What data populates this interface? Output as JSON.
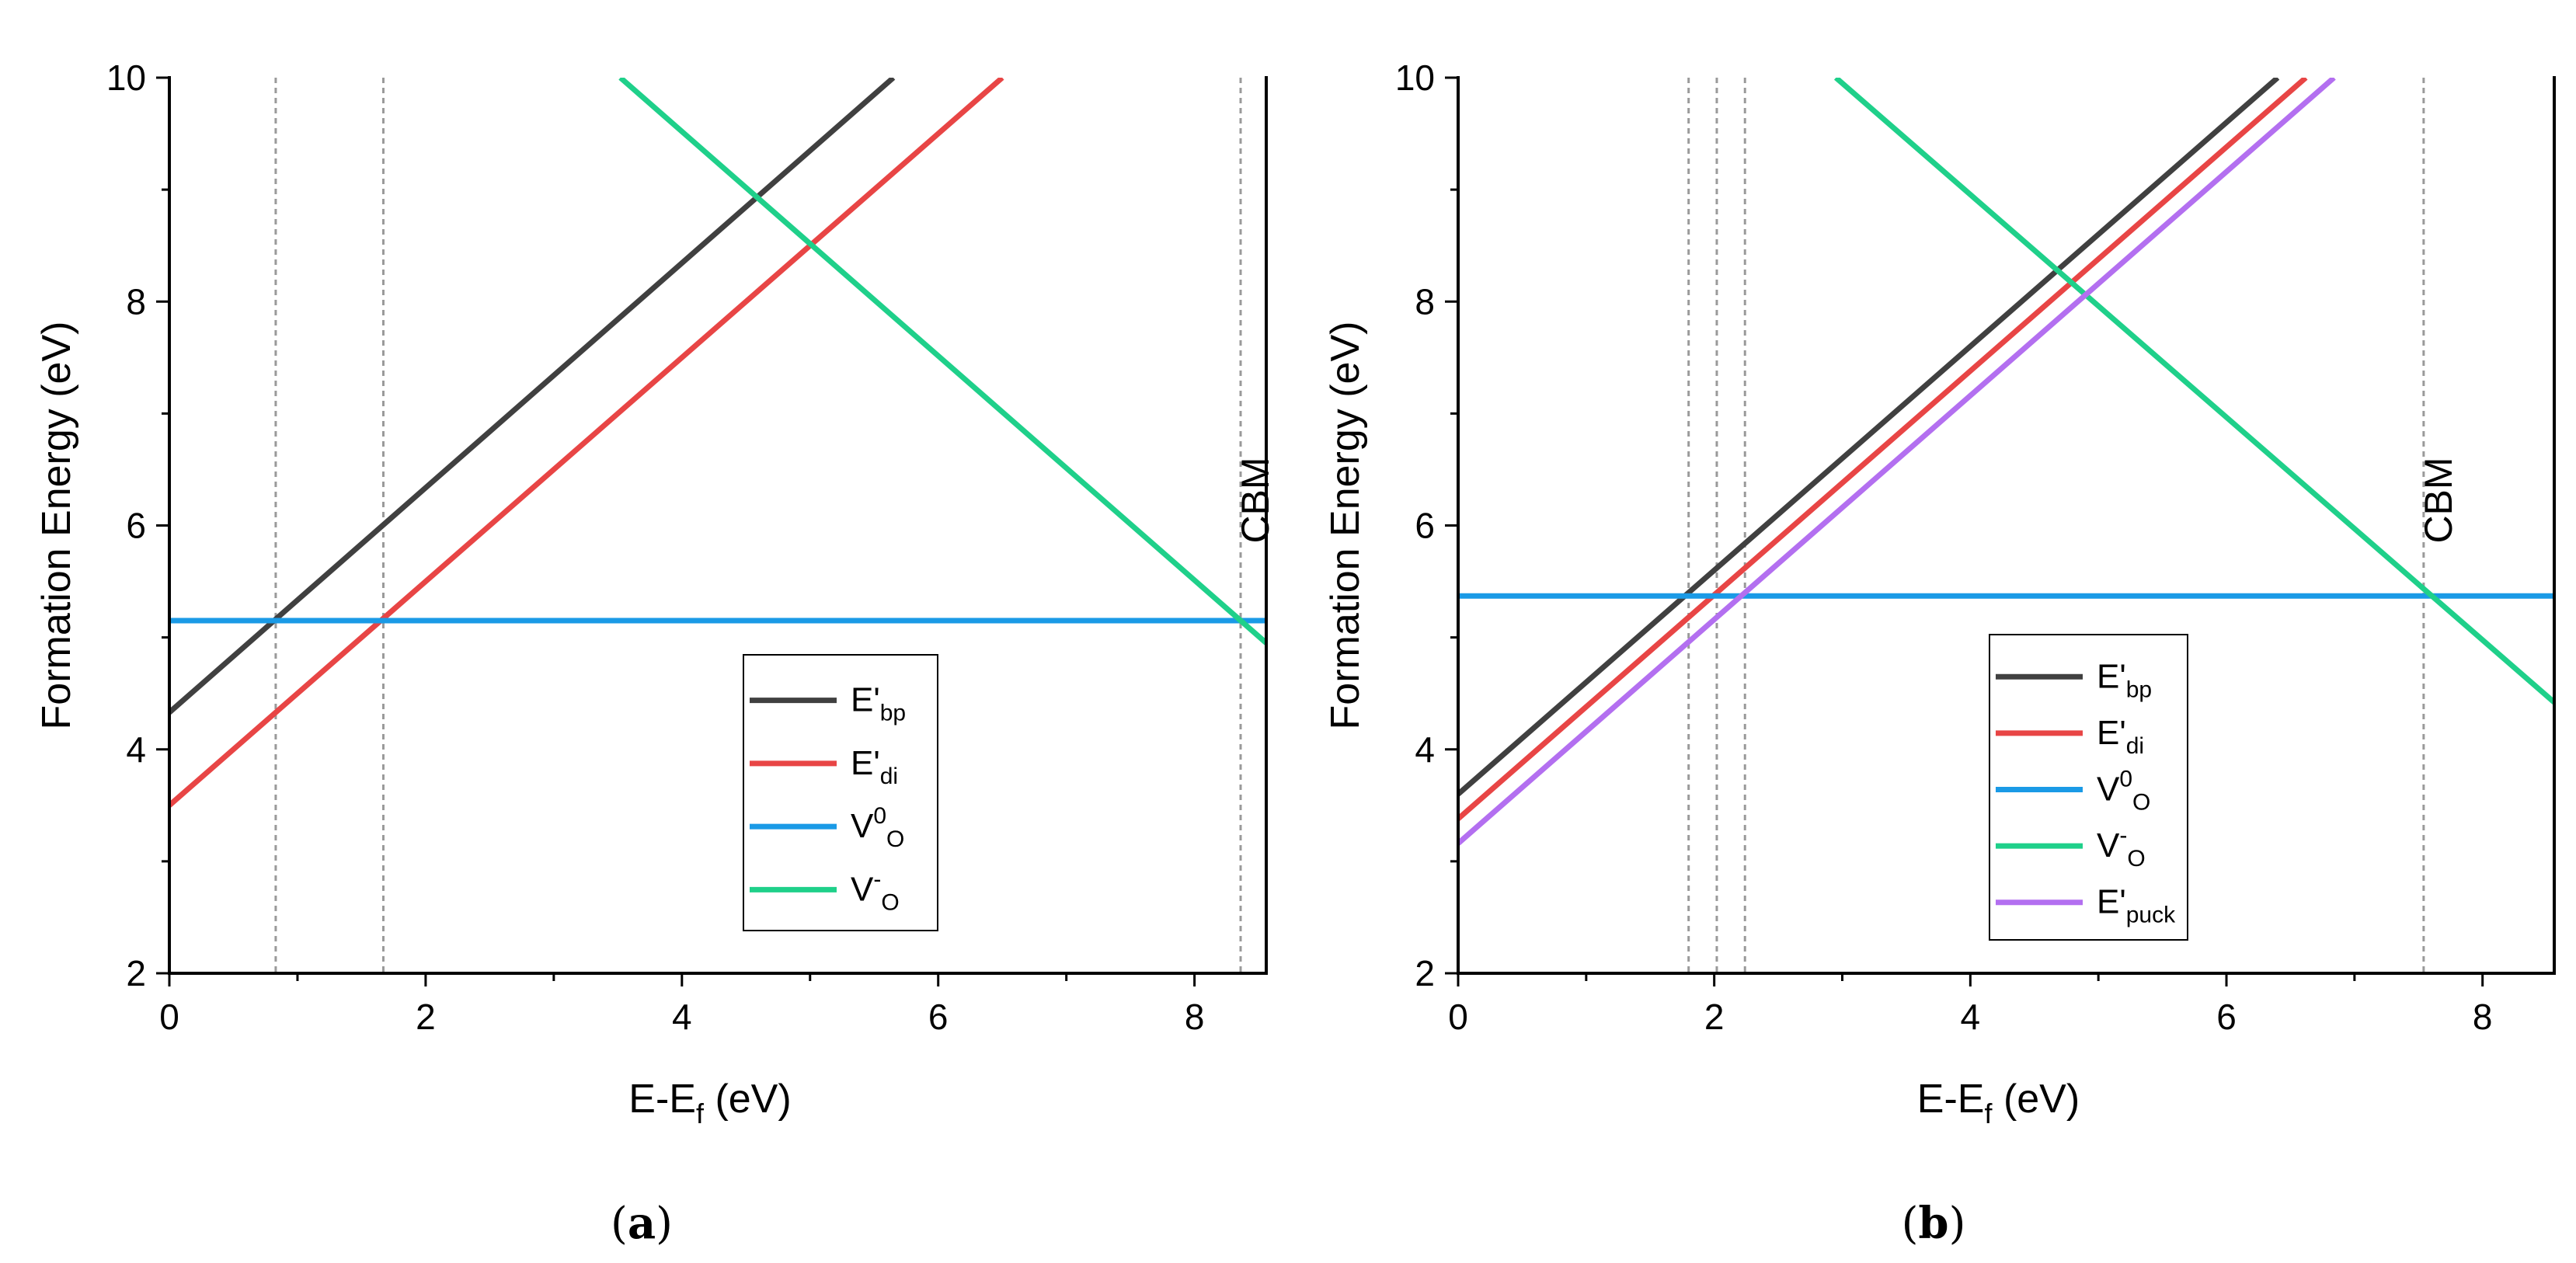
{
  "chart_data": [
    {
      "type": "line",
      "panel_label": "a",
      "xlabel_main": "E-E",
      "xlabel_sub": "f",
      "xlabel_unit": " (eV)",
      "ylabel": "Formation Energy (eV)",
      "xlim": [
        0,
        8.56
      ],
      "ylim": [
        2,
        10
      ],
      "xticks": [
        0,
        2,
        4,
        6,
        8
      ],
      "yticks": [
        2,
        4,
        6,
        8,
        10
      ],
      "annotation": "CBM",
      "annotation_x": 8.36,
      "vlines": [
        0.83,
        1.67,
        8.36
      ],
      "legend_position": "bottom-right",
      "series": [
        {
          "name": "E'",
          "sub": "bp",
          "sup": "",
          "color": "#404040",
          "points": [
            [
              0,
              4.33
            ],
            [
              5.65,
              10
            ]
          ]
        },
        {
          "name": "E'",
          "sub": "di",
          "sup": "",
          "color": "#e84545",
          "points": [
            [
              0,
              3.5
            ],
            [
              6.5,
              10
            ]
          ]
        },
        {
          "name": "V",
          "sub": "O",
          "sup": "0",
          "color": "#1a9ae6",
          "points": [
            [
              0,
              5.15
            ],
            [
              8.56,
              5.15
            ]
          ]
        },
        {
          "name": "V",
          "sub": "O",
          "sup": "-",
          "color": "#1fd08a",
          "points": [
            [
              3.52,
              10
            ],
            [
              8.56,
              4.95
            ]
          ]
        }
      ]
    },
    {
      "type": "line",
      "panel_label": "b",
      "xlabel_main": "E-E",
      "xlabel_sub": "f",
      "xlabel_unit": " (eV)",
      "ylabel": "Formation Energy (eV)",
      "xlim": [
        0,
        8.56
      ],
      "ylim": [
        2,
        10
      ],
      "xticks": [
        0,
        2,
        4,
        6,
        8
      ],
      "yticks": [
        2,
        4,
        6,
        8,
        10
      ],
      "annotation": "CBM",
      "annotation_x": 7.54,
      "vlines": [
        1.8,
        2.02,
        2.24,
        7.54
      ],
      "legend_position": "bottom-center",
      "series": [
        {
          "name": "E'",
          "sub": "bp",
          "sup": "",
          "color": "#404040",
          "points": [
            [
              0,
              3.6
            ],
            [
              6.4,
              10
            ]
          ]
        },
        {
          "name": "E'",
          "sub": "di",
          "sup": "",
          "color": "#e84545",
          "points": [
            [
              0,
              3.38
            ],
            [
              6.62,
              10
            ]
          ]
        },
        {
          "name": "V",
          "sub": "O",
          "sup": "0",
          "color": "#1a9ae6",
          "points": [
            [
              0,
              5.37
            ],
            [
              8.56,
              5.37
            ]
          ]
        },
        {
          "name": "V",
          "sub": "O",
          "sup": "-",
          "color": "#1fd08a",
          "points": [
            [
              2.95,
              10
            ],
            [
              8.56,
              4.42
            ]
          ]
        },
        {
          "name": "E'",
          "sub": "puck",
          "sup": "",
          "color": "#b36ff0",
          "points": [
            [
              0,
              3.16
            ],
            [
              6.84,
              10
            ]
          ]
        }
      ]
    }
  ]
}
